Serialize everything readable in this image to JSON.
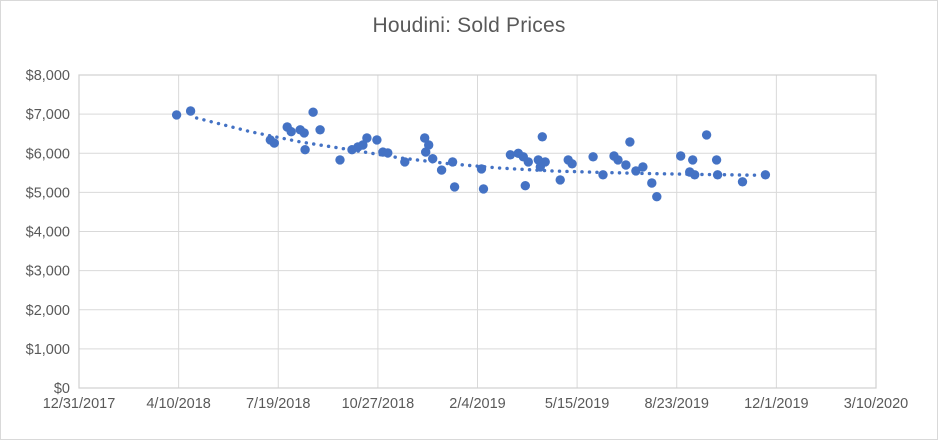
{
  "chart_data": {
    "type": "scatter",
    "title": "Houdini: Sold Prices",
    "xlabel": "",
    "ylabel": "",
    "grid": true,
    "legend": false,
    "x_axis": {
      "start": "12/31/2017",
      "end": "3/10/2020",
      "tick_interval_days": 100,
      "tick_labels": [
        "12/31/2017",
        "4/10/2018",
        "7/19/2018",
        "10/27/2018",
        "2/4/2019",
        "5/15/2019",
        "8/23/2019",
        "12/1/2019",
        "3/10/2020"
      ]
    },
    "y_axis": {
      "min": 0,
      "max": 8000,
      "tick_step": 1000,
      "tick_labels": [
        "$0",
        "$1,000",
        "$2,000",
        "$3,000",
        "$4,000",
        "$5,000",
        "$6,000",
        "$7,000",
        "$8,000"
      ]
    },
    "series": [
      {
        "name": "Sold Prices",
        "marker_color": "#4472C4",
        "points": [
          {
            "date": "4/8/2018",
            "price": 6980
          },
          {
            "date": "4/22/2018",
            "price": 7080
          },
          {
            "date": "7/11/2018",
            "price": 6340
          },
          {
            "date": "7/15/2018",
            "price": 6260
          },
          {
            "date": "7/28/2018",
            "price": 6670
          },
          {
            "date": "8/1/2018",
            "price": 6550
          },
          {
            "date": "8/10/2018",
            "price": 6600
          },
          {
            "date": "8/14/2018",
            "price": 6520
          },
          {
            "date": "8/15/2018",
            "price": 6090
          },
          {
            "date": "8/23/2018",
            "price": 7050
          },
          {
            "date": "8/30/2018",
            "price": 6600
          },
          {
            "date": "9/19/2018",
            "price": 5830
          },
          {
            "date": "10/1/2018",
            "price": 6090
          },
          {
            "date": "10/7/2018",
            "price": 6160
          },
          {
            "date": "10/12/2018",
            "price": 6210
          },
          {
            "date": "10/16/2018",
            "price": 6390
          },
          {
            "date": "10/26/2018",
            "price": 6340
          },
          {
            "date": "11/1/2018",
            "price": 6030
          },
          {
            "date": "11/6/2018",
            "price": 6010
          },
          {
            "date": "11/23/2018",
            "price": 5780
          },
          {
            "date": "12/13/2018",
            "price": 6390
          },
          {
            "date": "12/14/2018",
            "price": 6030
          },
          {
            "date": "12/17/2018",
            "price": 6210
          },
          {
            "date": "12/21/2018",
            "price": 5860
          },
          {
            "date": "12/30/2018",
            "price": 5570
          },
          {
            "date": "1/10/2019",
            "price": 5780
          },
          {
            "date": "1/12/2019",
            "price": 5140
          },
          {
            "date": "2/8/2019",
            "price": 5600
          },
          {
            "date": "2/10/2019",
            "price": 5090
          },
          {
            "date": "3/9/2019",
            "price": 5960
          },
          {
            "date": "3/17/2019",
            "price": 6000
          },
          {
            "date": "3/22/2019",
            "price": 5910
          },
          {
            "date": "3/24/2019",
            "price": 5170
          },
          {
            "date": "3/27/2019",
            "price": 5780
          },
          {
            "date": "4/6/2019",
            "price": 5830
          },
          {
            "date": "4/8/2019",
            "price": 5650
          },
          {
            "date": "4/10/2019",
            "price": 6420
          },
          {
            "date": "4/13/2019",
            "price": 5780
          },
          {
            "date": "4/28/2019",
            "price": 5320
          },
          {
            "date": "5/6/2019",
            "price": 5830
          },
          {
            "date": "5/10/2019",
            "price": 5730
          },
          {
            "date": "5/31/2019",
            "price": 5910
          },
          {
            "date": "6/10/2019",
            "price": 5450
          },
          {
            "date": "6/21/2019",
            "price": 5930
          },
          {
            "date": "6/25/2019",
            "price": 5830
          },
          {
            "date": "7/3/2019",
            "price": 5700
          },
          {
            "date": "7/7/2019",
            "price": 6290
          },
          {
            "date": "7/13/2019",
            "price": 5550
          },
          {
            "date": "7/20/2019",
            "price": 5650
          },
          {
            "date": "7/29/2019",
            "price": 5240
          },
          {
            "date": "8/3/2019",
            "price": 4890
          },
          {
            "date": "8/27/2019",
            "price": 5930
          },
          {
            "date": "9/5/2019",
            "price": 5520
          },
          {
            "date": "9/8/2019",
            "price": 5830
          },
          {
            "date": "9/10/2019",
            "price": 5450
          },
          {
            "date": "9/22/2019",
            "price": 6470
          },
          {
            "date": "10/2/2019",
            "price": 5830
          },
          {
            "date": "10/3/2019",
            "price": 5450
          },
          {
            "date": "10/28/2019",
            "price": 5270
          },
          {
            "date": "11/20/2019",
            "price": 5450
          }
        ]
      }
    ],
    "trendline": {
      "style": "dotted",
      "color": "#4472C4",
      "points": [
        {
          "date": "4/28/2018",
          "price": 6900
        },
        {
          "date": "6/21/2018",
          "price": 6550
        },
        {
          "date": "8/10/2018",
          "price": 6290
        },
        {
          "date": "9/29/2018",
          "price": 6090
        },
        {
          "date": "11/18/2018",
          "price": 5880
        },
        {
          "date": "1/7/2019",
          "price": 5730
        },
        {
          "date": "2/27/2019",
          "price": 5620
        },
        {
          "date": "4/18/2019",
          "price": 5550
        },
        {
          "date": "6/7/2019",
          "price": 5510
        },
        {
          "date": "7/27/2019",
          "price": 5480
        },
        {
          "date": "9/15/2019",
          "price": 5460
        },
        {
          "date": "11/13/2019",
          "price": 5440
        }
      ]
    }
  },
  "colors": {
    "marker": "#4472C4",
    "trendline": "#4472C4",
    "gridline": "#d9d9d9",
    "plot_border": "#d0d0d0",
    "axis_text": "#595959",
    "title_text": "#595959"
  }
}
